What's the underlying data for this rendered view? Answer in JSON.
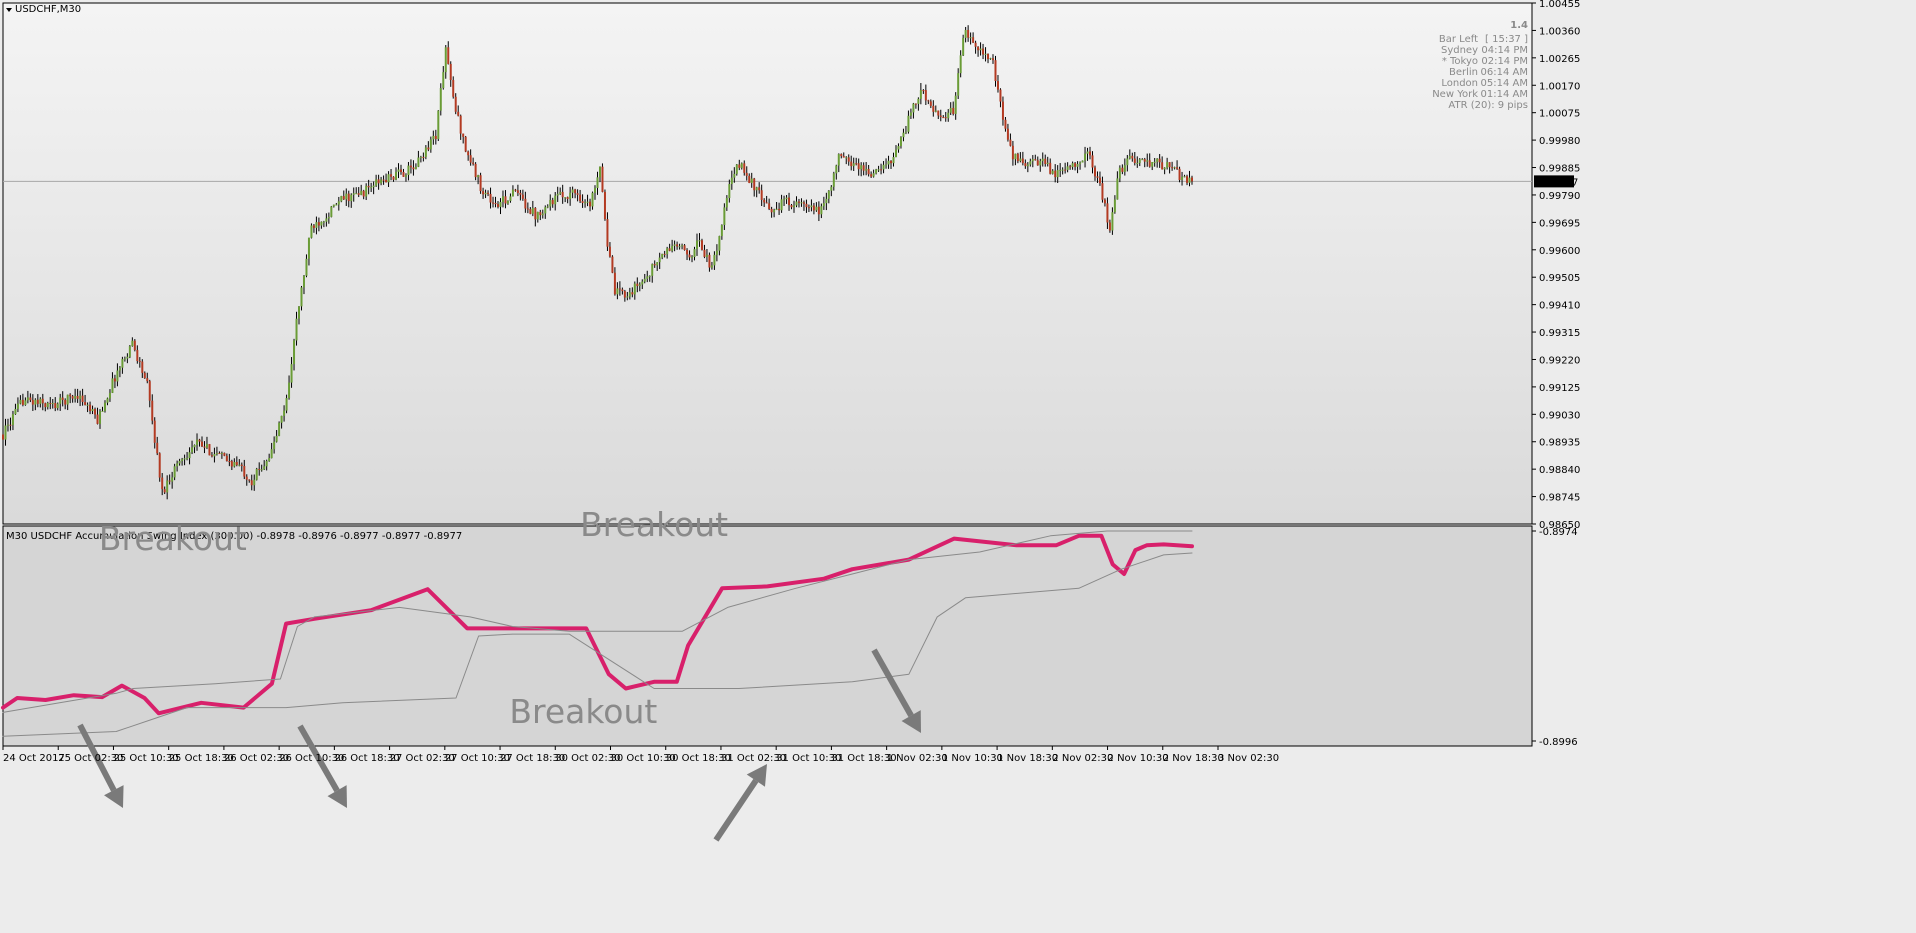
{
  "window": {
    "title": "USDCHF,M30",
    "colors": {
      "bull": "#6a9c36",
      "bear": "#b33a22",
      "asi": "#d8206b",
      "channel": "#8a8a8a"
    }
  },
  "info_panel": {
    "big_value": "1.4",
    "rows": [
      {
        "label": "Bar Left",
        "value": "[ 15:37 ]",
        "highlight": false
      },
      {
        "label": "Sydney",
        "value": "04:14 PM",
        "highlight": false
      },
      {
        "label": "* Tokyo",
        "value": "02:14 PM",
        "highlight": true
      },
      {
        "label": "Berlin",
        "value": "06:14 AM",
        "highlight": false
      },
      {
        "label": "London",
        "value": "05:14 AM",
        "highlight": false
      },
      {
        "label": "New York",
        "value": "01:14 AM",
        "highlight": false
      }
    ],
    "atr": "ATR (20): 9 pips"
  },
  "chart_data": [
    {
      "type": "candlestick",
      "title": "USDCHF,M30",
      "ylim": [
        0.9865,
        1.00455
      ],
      "y_ticks": [
        "1.00455",
        "1.00360",
        "1.00265",
        "1.00170",
        "1.00075",
        "0.99980",
        "0.99885",
        "0.99790",
        "0.99695",
        "0.99600",
        "0.99505",
        "0.99410",
        "0.99315",
        "0.99220",
        "0.99125",
        "0.99030",
        "0.98935",
        "0.98840",
        "0.98745",
        "0.98650"
      ],
      "current_price": "0.99837",
      "close_path": [
        [
          0,
          0.9896
        ],
        [
          8,
          0.9908
        ],
        [
          20,
          0.9906
        ],
        [
          30,
          0.991
        ],
        [
          38,
          0.9901
        ],
        [
          45,
          0.9916
        ],
        [
          52,
          0.9928
        ],
        [
          58,
          0.9913
        ],
        [
          64,
          0.9876
        ],
        [
          70,
          0.9886
        ],
        [
          78,
          0.9893
        ],
        [
          86,
          0.9889
        ],
        [
          95,
          0.9885
        ],
        [
          100,
          0.988
        ],
        [
          108,
          0.989
        ],
        [
          114,
          0.9908
        ],
        [
          118,
          0.9935
        ],
        [
          124,
          0.9968
        ],
        [
          130,
          0.9972
        ],
        [
          137,
          0.9978
        ],
        [
          143,
          0.9979
        ],
        [
          150,
          0.9983
        ],
        [
          158,
          0.9986
        ],
        [
          165,
          0.9988
        ],
        [
          170,
          0.9995
        ],
        [
          174,
          1.0
        ],
        [
          176,
          1.0015
        ],
        [
          178,
          1.003
        ],
        [
          181,
          1.0012
        ],
        [
          186,
          0.9995
        ],
        [
          192,
          0.9982
        ],
        [
          198,
          0.9975
        ],
        [
          206,
          0.998
        ],
        [
          214,
          0.9972
        ],
        [
          222,
          0.9978
        ],
        [
          230,
          0.998
        ],
        [
          236,
          0.9975
        ],
        [
          240,
          0.999
        ],
        [
          243,
          0.9962
        ],
        [
          246,
          0.9945
        ],
        [
          252,
          0.9945
        ],
        [
          258,
          0.995
        ],
        [
          264,
          0.9957
        ],
        [
          270,
          0.9962
        ],
        [
          276,
          0.9958
        ],
        [
          280,
          0.9963
        ],
        [
          285,
          0.9953
        ],
        [
          288,
          0.9965
        ],
        [
          292,
          0.9982
        ],
        [
          296,
          0.999
        ],
        [
          302,
          0.9982
        ],
        [
          308,
          0.9973
        ],
        [
          315,
          0.9977
        ],
        [
          322,
          0.9975
        ],
        [
          328,
          0.9973
        ],
        [
          332,
          0.998
        ],
        [
          336,
          0.9992
        ],
        [
          342,
          0.999
        ],
        [
          350,
          0.9986
        ],
        [
          356,
          0.999
        ],
        [
          362,
          1.0
        ],
        [
          366,
          1.001
        ],
        [
          370,
          1.0015
        ],
        [
          376,
          1.0005
        ],
        [
          382,
          1.0008
        ],
        [
          386,
          1.0035
        ],
        [
          390,
          1.0033
        ],
        [
          394,
          1.0028
        ],
        [
          398,
          1.0024
        ],
        [
          402,
          1.0005
        ],
        [
          406,
          0.9992
        ],
        [
          412,
          0.999
        ],
        [
          418,
          0.999
        ],
        [
          424,
          0.9986
        ],
        [
          430,
          0.999
        ],
        [
          436,
          0.9993
        ],
        [
          440,
          0.9985
        ],
        [
          443,
          0.9975
        ],
        [
          445,
          0.9965
        ],
        [
          448,
          0.9985
        ],
        [
          452,
          0.9992
        ],
        [
          458,
          0.999
        ],
        [
          464,
          0.999
        ],
        [
          470,
          0.9988
        ],
        [
          474,
          0.9985
        ],
        [
          478,
          0.99837
        ]
      ],
      "x_ticks": [
        "24 Oct 2017",
        "25 Oct 02:30",
        "25 Oct 10:30",
        "25 Oct 18:30",
        "26 Oct 02:30",
        "26 Oct 10:30",
        "26 Oct 18:30",
        "27 Oct 02:30",
        "27 Oct 10:30",
        "27 Oct 18:30",
        "30 Oct 02:30",
        "30 Oct 10:30",
        "30 Oct 18:30",
        "31 Oct 02:30",
        "31 Oct 10:30",
        "31 Oct 18:30",
        "1 Nov 02:30",
        "1 Nov 10:30",
        "1 Nov 18:30",
        "2 Nov 02:30",
        "2 Nov 10:30",
        "2 Nov 18:30",
        "3 Nov 02:30"
      ]
    },
    {
      "type": "line",
      "title": "M30 USDCHF Accumulation Swing Index (300.00) -0.8978 -0.8976 -0.8977 -0.8977 -0.8977",
      "ylim": [
        -0.8996,
        -0.8974
      ],
      "y_ticks": [
        "-0.8974",
        "-0.8996"
      ],
      "series": [
        {
          "role": "asi",
          "points": [
            [
              0,
              -0.89925
            ],
            [
              5,
              -0.89915
            ],
            [
              15,
              -0.89917
            ],
            [
              25,
              -0.89912
            ],
            [
              35,
              -0.89914
            ],
            [
              42,
              -0.89902
            ],
            [
              50,
              -0.89915
            ],
            [
              55,
              -0.89931
            ],
            [
              70,
              -0.8992
            ],
            [
              85,
              -0.89925
            ],
            [
              95,
              -0.899
            ],
            [
              100,
              -0.89837
            ],
            [
              110,
              -0.89832
            ],
            [
              130,
              -0.89823
            ],
            [
              150,
              -0.89801
            ],
            [
              164,
              -0.89842
            ],
            [
              190,
              -0.89842
            ],
            [
              206,
              -0.89842
            ],
            [
              214,
              -0.8989
            ],
            [
              220,
              -0.89905
            ],
            [
              230,
              -0.89898
            ],
            [
              238,
              -0.89898
            ],
            [
              242,
              -0.8986
            ],
            [
              254,
              -0.898
            ],
            [
              270,
              -0.89798
            ],
            [
              290,
              -0.8979
            ],
            [
              300,
              -0.8978
            ],
            [
              320,
              -0.8977
            ],
            [
              336,
              -0.89748
            ],
            [
              358,
              -0.89755
            ],
            [
              372,
              -0.89755
            ],
            [
              380,
              -0.89745
            ],
            [
              388,
              -0.89745
            ],
            [
              392,
              -0.89775
            ],
            [
              396,
              -0.89785
            ],
            [
              400,
              -0.8976
            ],
            [
              404,
              -0.89755
            ],
            [
              410,
              -0.89754
            ],
            [
              420,
              -0.89756
            ]
          ]
        },
        {
          "role": "channel-upper",
          "points": [
            [
              0,
              -0.8993
            ],
            [
              20,
              -0.8992
            ],
            [
              40,
              -0.8991
            ],
            [
              46,
              -0.89905
            ],
            [
              75,
              -0.899
            ],
            [
              98,
              -0.89895
            ],
            [
              104,
              -0.8984
            ],
            [
              110,
              -0.8983
            ],
            [
              140,
              -0.8982
            ],
            [
              165,
              -0.8983
            ],
            [
              180,
              -0.8984
            ],
            [
              200,
              -0.89845
            ],
            [
              220,
              -0.89845
            ],
            [
              240,
              -0.89845
            ],
            [
              256,
              -0.8982
            ],
            [
              280,
              -0.898
            ],
            [
              300,
              -0.89785
            ],
            [
              320,
              -0.8977
            ],
            [
              345,
              -0.89762
            ],
            [
              370,
              -0.89745
            ],
            [
              390,
              -0.8974
            ],
            [
              420,
              -0.8974
            ]
          ]
        },
        {
          "role": "channel-lower",
          "points": [
            [
              0,
              -0.89955
            ],
            [
              40,
              -0.8995
            ],
            [
              55,
              -0.89935
            ],
            [
              65,
              -0.89925
            ],
            [
              100,
              -0.89925
            ],
            [
              120,
              -0.8992
            ],
            [
              160,
              -0.89915
            ],
            [
              168,
              -0.8985
            ],
            [
              180,
              -0.89848
            ],
            [
              200,
              -0.89848
            ],
            [
              230,
              -0.89905
            ],
            [
              260,
              -0.89905
            ],
            [
              300,
              -0.89898
            ],
            [
              320,
              -0.8989
            ],
            [
              330,
              -0.8983
            ],
            [
              340,
              -0.8981
            ],
            [
              360,
              -0.89805
            ],
            [
              380,
              -0.898
            ],
            [
              395,
              -0.8978
            ],
            [
              410,
              -0.89765
            ],
            [
              420,
              -0.89763
            ]
          ]
        }
      ],
      "annotations": [
        {
          "text": "Breakout",
          "x": 60,
          "y": -0.8976,
          "arrow": [
            [
              22,
              -0.89804
            ],
            [
              37,
              -0.89853
            ]
          ]
        },
        {
          "text": "Breakout",
          "x": 230,
          "y": -0.89745
        },
        {
          "text": "Breakout",
          "x": 205,
          "y": -0.89941
        }
      ]
    }
  ]
}
